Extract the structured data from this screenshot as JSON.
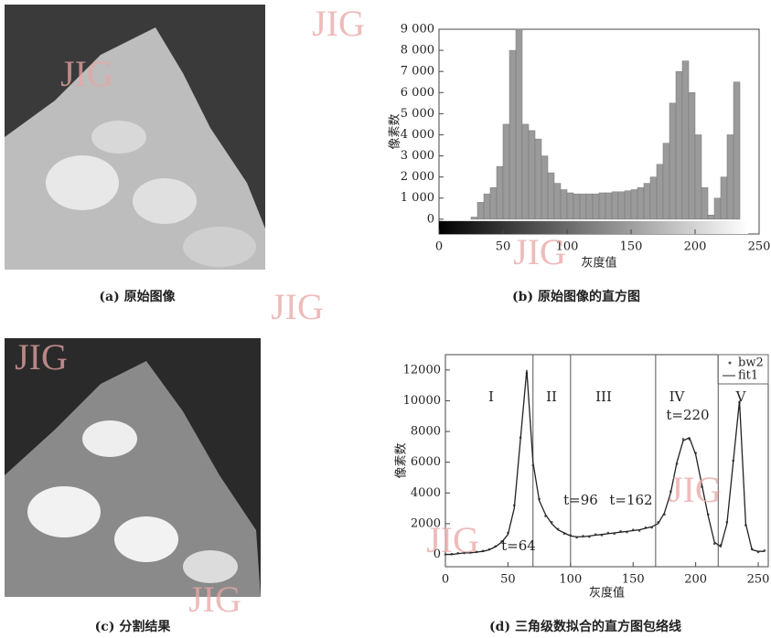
{
  "watermark": "JIG",
  "captions": [
    "(a) 原始图像",
    "(b) 原始图像的直方图",
    "(c) 分割结果",
    "(d) 三角级数拟合的直方图包络线"
  ],
  "chart_data": [
    {
      "type": "histogram",
      "xlabel": "灰度值",
      "ylabel": "像素数",
      "color": "#9a9a9a",
      "bins": [
        25,
        30,
        35,
        40,
        45,
        50,
        55,
        60,
        65,
        70,
        75,
        80,
        85,
        90,
        95,
        100,
        105,
        110,
        115,
        120,
        125,
        130,
        135,
        140,
        145,
        150,
        155,
        160,
        165,
        170,
        175,
        180,
        185,
        190,
        195,
        200,
        205,
        210,
        215,
        220,
        225,
        230,
        235
      ],
      "values": [
        100,
        800,
        1200,
        1500,
        2500,
        4500,
        8000,
        9000,
        4500,
        4200,
        3800,
        3000,
        2200,
        1700,
        1400,
        1250,
        1200,
        1200,
        1200,
        1200,
        1250,
        1250,
        1300,
        1300,
        1350,
        1400,
        1500,
        1700,
        2000,
        2600,
        3600,
        5500,
        7000,
        7500,
        6000,
        4000,
        1500,
        200,
        1000,
        2000,
        4000,
        6500
      ],
      "xlim": [
        0,
        250
      ],
      "xticks": [
        0,
        50,
        100,
        150,
        200,
        250
      ],
      "ylim": [
        -700,
        9000
      ],
      "yticks": [
        0,
        {
          "value": 1000,
          "label": "1 000"
        },
        {
          "value": 2000,
          "label": "2 000"
        },
        {
          "value": 3000,
          "label": "3 000"
        },
        {
          "value": 4000,
          "label": "4 000"
        },
        {
          "value": 5000,
          "label": "5 000"
        },
        {
          "value": 6000,
          "label": "6 000"
        },
        {
          "value": 7000,
          "label": "7 000"
        },
        {
          "value": 8000,
          "label": "8 000"
        },
        {
          "value": 9000,
          "label": "9 000"
        }
      ]
    },
    {
      "type": "line",
      "xlabel": "灰度值",
      "ylabel": "像素数",
      "x": [
        0,
        5,
        10,
        15,
        20,
        25,
        30,
        35,
        40,
        45,
        50,
        55,
        60,
        65,
        70,
        75,
        80,
        85,
        90,
        95,
        100,
        105,
        110,
        115,
        120,
        125,
        130,
        135,
        140,
        145,
        150,
        155,
        160,
        165,
        170,
        175,
        180,
        185,
        190,
        195,
        200,
        205,
        210,
        215,
        220,
        225,
        230,
        235,
        240,
        245,
        250,
        255
      ],
      "series": [
        {
          "name": "bw2",
          "color": "#555555",
          "values": [
            0,
            20,
            80,
            90,
            120,
            160,
            220,
            330,
            520,
            850,
            1400,
            3200,
            7600,
            11800,
            5800,
            3600,
            2500,
            2100,
            1650,
            1350,
            1250,
            1100,
            1200,
            1150,
            1300,
            1250,
            1400,
            1350,
            1500,
            1450,
            1600,
            1550,
            1750,
            1750,
            2100,
            2600,
            4100,
            5900,
            7500,
            7500,
            6600,
            4400,
            2600,
            700,
            600,
            2100,
            6100,
            9900,
            1900,
            350,
            150,
            250
          ]
        },
        {
          "name": "fit1",
          "color": "#222222",
          "values": [
            0,
            0,
            50,
            100,
            100,
            150,
            200,
            300,
            500,
            800,
            1300,
            3000,
            7500,
            12000,
            6000,
            3500,
            2600,
            2000,
            1600,
            1400,
            1200,
            1150,
            1150,
            1200,
            1250,
            1300,
            1350,
            1400,
            1450,
            1500,
            1550,
            1600,
            1700,
            1800,
            2000,
            2700,
            4000,
            6000,
            7400,
            7600,
            6500,
            4500,
            2500,
            800,
            500,
            2000,
            6000,
            10000,
            2000,
            300,
            200,
            200
          ]
        }
      ],
      "dividers": [
        70,
        100,
        168,
        218
      ],
      "annotations": [
        "I",
        "II",
        "III",
        "IV",
        "V",
        "t=64",
        "t=96",
        "t=162",
        "t=220"
      ],
      "xlim": [
        0,
        258
      ],
      "xticks": [
        0,
        50,
        100,
        150,
        200,
        250
      ],
      "ylim": [
        -800,
        13000
      ],
      "yticks": [
        0,
        2000,
        4000,
        6000,
        8000,
        10000,
        12000
      ]
    }
  ]
}
